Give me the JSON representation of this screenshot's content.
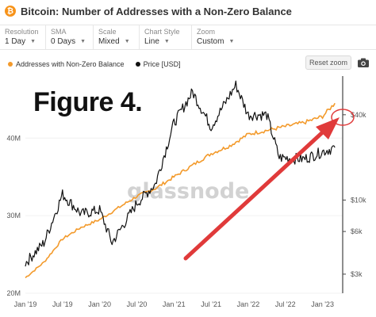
{
  "header": {
    "title": "Bitcoin: Number of Addresses with a Non-Zero Balance",
    "icon": "bitcoin-icon"
  },
  "controls": [
    {
      "label": "Resolution",
      "value": "1 Day"
    },
    {
      "label": "SMA",
      "value": "0 Days"
    },
    {
      "label": "Scale",
      "value": "Mixed"
    },
    {
      "label": "Chart Style",
      "value": "Line"
    },
    {
      "label": "Zoom",
      "value": "Custom"
    }
  ],
  "legend": {
    "addresses": "Addresses with Non-Zero Balance",
    "price": "Price [USD]"
  },
  "reset_zoom_label": "Reset zoom",
  "figure_label": "Figure 4.",
  "watermark": "glassnode",
  "colors": {
    "addresses": "#f39a2b",
    "price": "#111111",
    "arrow": "#e03a3a"
  },
  "chart_data": {
    "type": "line",
    "x_ticks": [
      "Jan '19",
      "Jul '19",
      "Jan '20",
      "Jul '20",
      "Jan '21",
      "Jul '21",
      "Jan '22",
      "Jul '22",
      "Jan '23"
    ],
    "left_axis_ticks": [
      "20M",
      "30M",
      "40M"
    ],
    "right_axis_ticks": [
      "$40k",
      "$10k",
      "$6k",
      "$3k"
    ],
    "left_ylim": [
      20000000,
      48000000
    ],
    "right_scale": "log",
    "series": [
      {
        "name": "Addresses with Non-Zero Balance",
        "axis": "left",
        "x": [
          "2019-01",
          "2019-04",
          "2019-07",
          "2019-10",
          "2020-01",
          "2020-04",
          "2020-07",
          "2020-10",
          "2021-01",
          "2021-04",
          "2021-07",
          "2021-10",
          "2022-01",
          "2022-04",
          "2022-07",
          "2022-10",
          "2023-01",
          "2023-03"
        ],
        "values": [
          22000000,
          24000000,
          27000000,
          28500000,
          29500000,
          31000000,
          32500000,
          33500000,
          35000000,
          36500000,
          38000000,
          39000000,
          40500000,
          41000000,
          41500000,
          42000000,
          42800000,
          44500000
        ]
      },
      {
        "name": "Price [USD]",
        "axis": "right",
        "x": [
          "2019-01",
          "2019-04",
          "2019-07",
          "2019-10",
          "2020-01",
          "2020-03",
          "2020-07",
          "2020-10",
          "2021-01",
          "2021-04",
          "2021-07",
          "2021-11",
          "2022-01",
          "2022-04",
          "2022-06",
          "2022-10",
          "2023-01",
          "2023-03"
        ],
        "values": [
          3600,
          5000,
          11000,
          8000,
          8500,
          5000,
          9500,
          13000,
          35000,
          58000,
          33000,
          65000,
          40000,
          40000,
          20000,
          19500,
          22000,
          23500
        ]
      }
    ],
    "annotations": [
      {
        "type": "arrow",
        "target": "latest addresses value"
      },
      {
        "type": "circle",
        "target": "latest addresses value"
      }
    ]
  }
}
